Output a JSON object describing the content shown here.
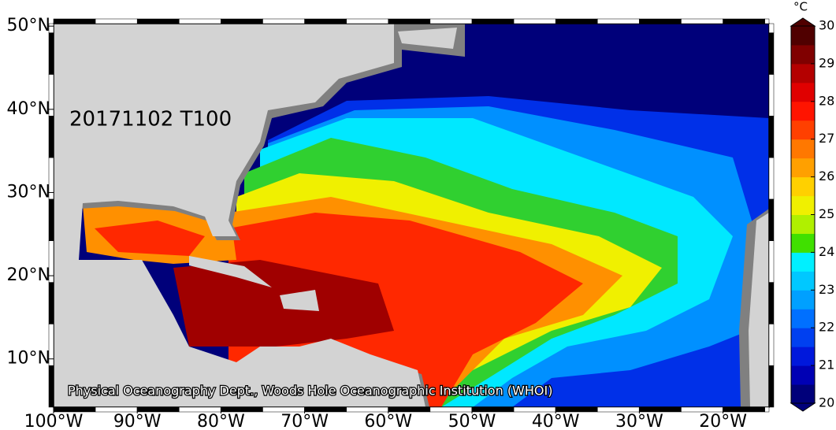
{
  "title": "20171102 T100",
  "credit": "Physical Oceanography Dept., Woods Hole Oceanographic Institution (WHOI)",
  "map": {
    "xlim": [
      -100,
      -14.5
    ],
    "ylim": [
      4.2,
      50.3
    ],
    "xticks": [
      {
        "value": -100,
        "label": "100°W"
      },
      {
        "value": -90,
        "label": "90°W"
      },
      {
        "value": -80,
        "label": "80°W"
      },
      {
        "value": -70,
        "label": "70°W"
      },
      {
        "value": -60,
        "label": "60°W"
      },
      {
        "value": -50,
        "label": "50°W"
      },
      {
        "value": -40,
        "label": "40°W"
      },
      {
        "value": -30,
        "label": "30°W"
      },
      {
        "value": -20,
        "label": "20°W"
      }
    ],
    "yticks": [
      {
        "value": 10,
        "label": "10°N"
      },
      {
        "value": 20,
        "label": "20°N"
      },
      {
        "value": 30,
        "label": "30°N"
      },
      {
        "value": 40,
        "label": "40°N"
      },
      {
        "value": 50,
        "label": "50°N"
      }
    ]
  },
  "colorbar": {
    "unit": "°C",
    "lim": [
      20,
      30
    ],
    "ticks": [
      20,
      21,
      22,
      23,
      24,
      25,
      26,
      27,
      28,
      29,
      30
    ],
    "colors": [
      "#00007a",
      "#0000b4",
      "#0018dc",
      "#0040f0",
      "#0070ff",
      "#00a0ff",
      "#00c8ff",
      "#00f0ff",
      "#40e000",
      "#b0f000",
      "#f0f000",
      "#ffd000",
      "#ffa000",
      "#ff7800",
      "#ff4000",
      "#ff1400",
      "#e00000",
      "#b40000",
      "#800000",
      "#500000"
    ]
  }
}
